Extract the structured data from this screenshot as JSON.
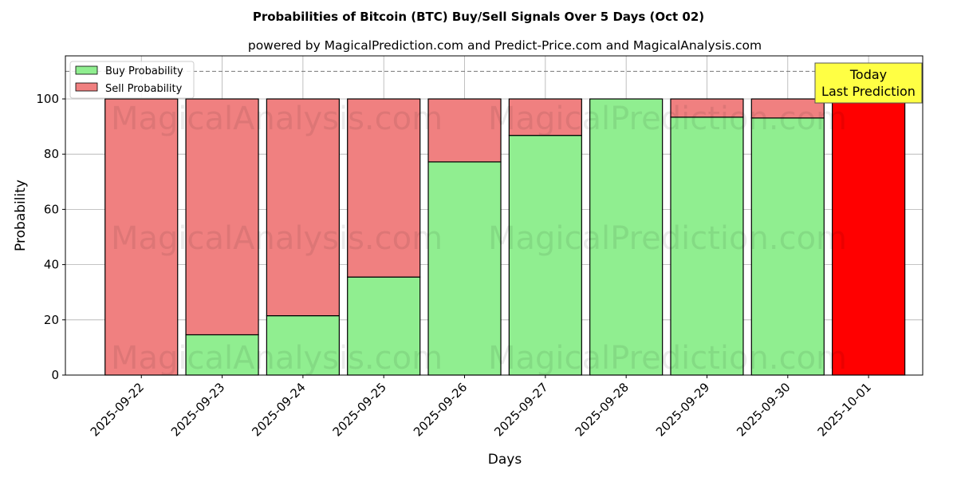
{
  "chart_data": {
    "type": "bar",
    "stacked": true,
    "title": "Probabilities of Bitcoin (BTC) Buy/Sell Signals Over 5 Days (Oct 02)",
    "subtitle": "powered by MagicalPrediction.com and Predict-Price.com and MagicalAnalysis.com",
    "xlabel": "Days",
    "ylabel": "Probability",
    "ylim": [
      0,
      115.6
    ],
    "yticks": [
      0,
      20,
      40,
      60,
      80,
      100
    ],
    "reference_line": 110,
    "grid": true,
    "legend_position": "top-left",
    "categories": [
      "2025-09-22",
      "2025-09-23",
      "2025-09-24",
      "2025-09-25",
      "2025-09-26",
      "2025-09-27",
      "2025-09-28",
      "2025-09-29",
      "2025-09-30",
      "2025-10-01"
    ],
    "series": [
      {
        "name": "Buy Probability",
        "color": "#90ee90",
        "values": [
          0,
          14.6,
          21.5,
          35.5,
          77.2,
          86.8,
          100,
          93.4,
          93.1,
          0
        ]
      },
      {
        "name": "Sell Probability",
        "color": "#f08080",
        "values": [
          100,
          85.4,
          78.5,
          64.5,
          22.8,
          13.2,
          0,
          6.6,
          6.9,
          100
        ]
      }
    ],
    "highlight": {
      "index": 9,
      "color": "#ff0000"
    },
    "annotation": {
      "line1": "Today",
      "line2": "Last Prediction",
      "color": "#ffff44"
    },
    "watermarks": [
      "MagicalAnalysis.com",
      "MagicalPrediction.com"
    ]
  }
}
